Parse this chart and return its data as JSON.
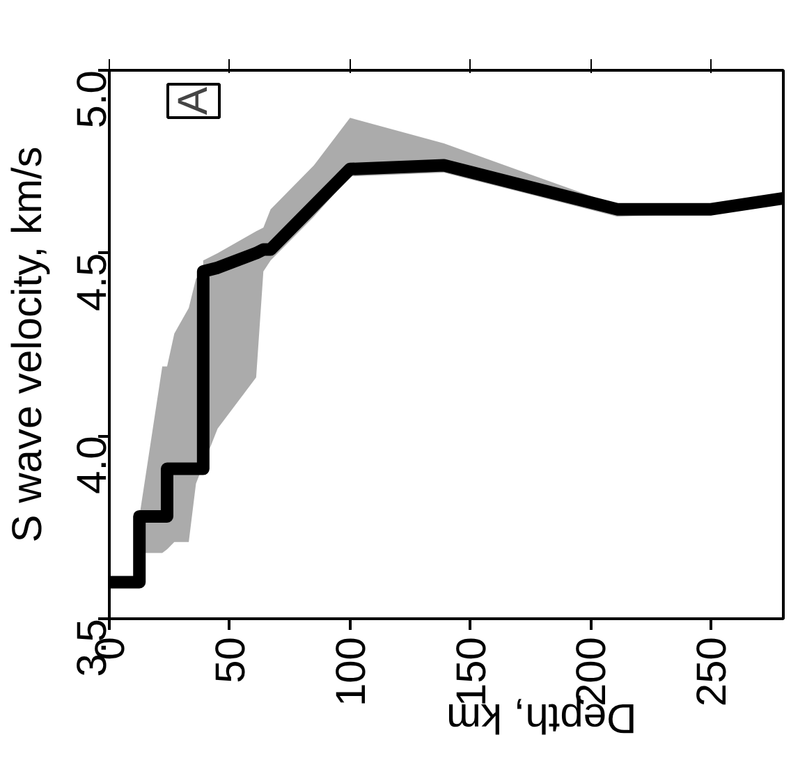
{
  "chart_data": {
    "type": "line",
    "xlabel": "Depth, km",
    "ylabel": "S wave velocity, km/s",
    "annotations": [
      "A"
    ],
    "xlim": [
      0,
      280
    ],
    "xticks": [
      0,
      50,
      100,
      150,
      200,
      250
    ],
    "ylim": [
      3.5,
      5.0
    ],
    "yticks": [
      {
        "value": 3.5,
        "label": "3.5"
      },
      {
        "value": 4.0,
        "label": "4.0"
      },
      {
        "value": 4.5,
        "label": "4.5"
      },
      {
        "value": 5.0,
        "label": "5.0"
      }
    ],
    "grid": false,
    "marker": "none",
    "line_style": "solid",
    "series": [
      {
        "color": "#000000",
        "x": [
          0,
          12.5,
          12.5,
          22,
          24,
          24,
          27,
          33,
          36,
          39,
          39,
          45,
          61,
          64,
          67,
          85,
          100,
          139,
          211,
          250,
          280
        ],
        "values": [
          3.6,
          3.6,
          3.78,
          3.78,
          3.78,
          3.91,
          3.91,
          3.91,
          3.91,
          3.91,
          4.45,
          4.46,
          4.5,
          4.51,
          4.51,
          4.63,
          4.73,
          4.74,
          4.62,
          4.62,
          4.65
        ],
        "lower": [
          null,
          null,
          3.68,
          3.68,
          3.69,
          3.69,
          3.71,
          3.71,
          3.87,
          3.92,
          3.92,
          4.02,
          4.16,
          4.45,
          4.48,
          4.6,
          4.71,
          4.72,
          4.6,
          4.61,
          4.64
        ],
        "upper": [
          null,
          null,
          3.78,
          4.19,
          4.19,
          4.19,
          4.28,
          4.35,
          4.43,
          4.45,
          4.48,
          4.5,
          4.56,
          4.57,
          4.62,
          4.74,
          4.87,
          4.8,
          4.63,
          4.63,
          4.66
        ]
      }
    ]
  }
}
